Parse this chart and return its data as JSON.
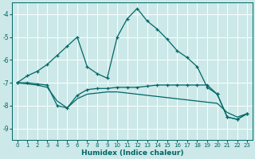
{
  "xlabel": "Humidex (Indice chaleur)",
  "ylabel": "",
  "bg_color": "#cce8e8",
  "grid_color": "#ffffff",
  "line_color": "#006666",
  "xlim": [
    -0.5,
    23.5
  ],
  "ylim": [
    -9.5,
    -3.5
  ],
  "yticks": [
    -9,
    -8,
    -7,
    -6,
    -5,
    -4
  ],
  "xticks": [
    0,
    1,
    2,
    3,
    4,
    5,
    6,
    7,
    8,
    9,
    10,
    11,
    12,
    13,
    14,
    15,
    16,
    17,
    18,
    19,
    20,
    21,
    22,
    23
  ],
  "line1_x": [
    0,
    1,
    2,
    3,
    4,
    5,
    6,
    7,
    8,
    9,
    10,
    11,
    12,
    13,
    14,
    15,
    16,
    17,
    18,
    19,
    20,
    21,
    22,
    23
  ],
  "line1_y": [
    -7.0,
    -6.7,
    -6.5,
    -6.2,
    -5.8,
    -5.4,
    -5.0,
    -6.3,
    -6.6,
    -6.8,
    -5.0,
    -4.2,
    -3.75,
    -4.3,
    -4.65,
    -5.1,
    -5.6,
    -5.9,
    -6.3,
    -7.2,
    -7.5,
    -8.5,
    -8.6,
    -8.35
  ],
  "line2_x": [
    0,
    1,
    2,
    3,
    4,
    5,
    6,
    7,
    8,
    9,
    10,
    11,
    12,
    13,
    14,
    15,
    16,
    17,
    18,
    19,
    20,
    21,
    22,
    23
  ],
  "line2_y": [
    -7.0,
    -7.0,
    -7.05,
    -7.1,
    -8.0,
    -8.1,
    -7.55,
    -7.3,
    -7.25,
    -7.25,
    -7.2,
    -7.2,
    -7.2,
    -7.15,
    -7.1,
    -7.1,
    -7.1,
    -7.1,
    -7.1,
    -7.1,
    -7.5,
    -8.5,
    -8.6,
    -8.35
  ],
  "line3_x": [
    0,
    1,
    2,
    3,
    4,
    5,
    6,
    7,
    8,
    9,
    10,
    11,
    12,
    13,
    14,
    15,
    16,
    17,
    18,
    19,
    20,
    21,
    22,
    23
  ],
  "line3_y": [
    -7.0,
    -7.05,
    -7.1,
    -7.2,
    -7.8,
    -8.1,
    -7.7,
    -7.5,
    -7.45,
    -7.4,
    -7.4,
    -7.45,
    -7.5,
    -7.55,
    -7.6,
    -7.65,
    -7.7,
    -7.75,
    -7.8,
    -7.85,
    -7.9,
    -8.3,
    -8.5,
    -8.35
  ],
  "line1_has_markers": true,
  "line2_has_markers": true,
  "line3_has_markers": false
}
